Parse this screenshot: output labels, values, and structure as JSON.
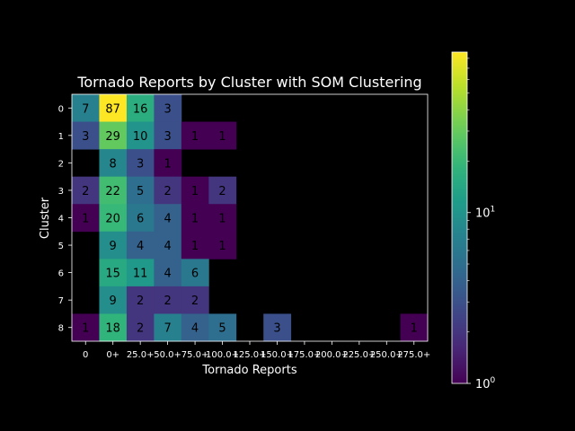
{
  "chart_data": {
    "type": "heatmap",
    "title": "Tornado Reports by Cluster with SOM Clustering",
    "xlabel": "Tornado Reports",
    "ylabel": "Cluster",
    "x_categories": [
      "0",
      "0+",
      "25.0+",
      "50.0+",
      "75.0+",
      "100.0+",
      "125.0+",
      "150.0+",
      "175.0+",
      "200.0+",
      "225.0+",
      "250.0+",
      "275.0+"
    ],
    "y_categories": [
      "0",
      "1",
      "2",
      "3",
      "4",
      "5",
      "6",
      "7",
      "8"
    ],
    "values": [
      [
        7,
        87,
        16,
        3,
        null,
        null,
        null,
        null,
        null,
        null,
        null,
        null,
        null
      ],
      [
        3,
        29,
        10,
        3,
        1,
        1,
        null,
        null,
        null,
        null,
        null,
        null,
        null
      ],
      [
        null,
        8,
        3,
        1,
        null,
        null,
        null,
        null,
        null,
        null,
        null,
        null,
        null
      ],
      [
        2,
        22,
        5,
        2,
        1,
        2,
        null,
        null,
        null,
        null,
        null,
        null,
        null
      ],
      [
        1,
        20,
        6,
        4,
        1,
        1,
        null,
        null,
        null,
        null,
        null,
        null,
        null
      ],
      [
        null,
        9,
        4,
        4,
        1,
        1,
        null,
        null,
        null,
        null,
        null,
        null,
        null
      ],
      [
        null,
        15,
        11,
        4,
        6,
        null,
        null,
        null,
        null,
        null,
        null,
        null,
        null
      ],
      [
        null,
        9,
        2,
        2,
        2,
        null,
        null,
        null,
        null,
        null,
        null,
        null,
        null
      ],
      [
        1,
        18,
        2,
        7,
        4,
        5,
        null,
        3,
        null,
        null,
        null,
        null,
        1
      ]
    ],
    "color_scale": "log",
    "colormap": "viridis",
    "colorbar": {
      "range": [
        1,
        87
      ],
      "tick_labels": [
        {
          "value": 1,
          "base": "10",
          "exp": "0"
        },
        {
          "value": 10,
          "base": "10",
          "exp": "1"
        }
      ]
    },
    "grid": false,
    "background": "#000000",
    "text_color": "#ffffff"
  }
}
